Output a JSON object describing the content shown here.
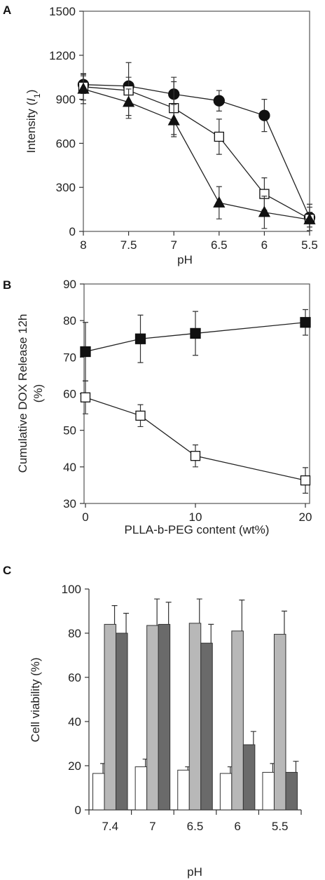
{
  "chart_data": [
    {
      "panel": "A",
      "type": "line",
      "xlabel": "pH",
      "ylabel_prefix": "Intensity (",
      "ylabel_italic": "I",
      "ylabel_sub": "1",
      "ylabel_suffix": ")",
      "x": [
        8,
        7.5,
        7,
        6.5,
        6,
        5.5
      ],
      "x_tick_labels": [
        "8",
        "7.5",
        "7",
        "6.5",
        "6",
        "5.5"
      ],
      "x_reversed": true,
      "ylim": [
        0,
        1500
      ],
      "y_ticks": [
        0,
        300,
        600,
        900,
        1200,
        1500
      ],
      "grid": false,
      "legend": "none",
      "series": [
        {
          "marker": "filled-circle",
          "values": [
            1000,
            990,
            935,
            890,
            790,
            95
          ],
          "errors": [
            60,
            60,
            115,
            70,
            110,
            90
          ]
        },
        {
          "marker": "open-square",
          "values": [
            985,
            960,
            840,
            645,
            255,
            85
          ],
          "errors": [
            90,
            190,
            180,
            120,
            110,
            80
          ]
        },
        {
          "marker": "filled-triangle",
          "values": [
            970,
            880,
            755,
            195,
            130,
            80
          ],
          "errors": [
            100,
            90,
            110,
            110,
            110,
            50
          ]
        }
      ]
    },
    {
      "panel": "B",
      "type": "line",
      "xlabel": "PLLA-b-PEG content (wt%)",
      "ylabel_line1": "Cumulative DOX Release 12h",
      "ylabel_line2": "(%)",
      "x": [
        0,
        5,
        10,
        20
      ],
      "xlim": [
        0,
        20
      ],
      "x_ticks": [
        0,
        10,
        20
      ],
      "ylim": [
        30,
        90
      ],
      "y_ticks": [
        30,
        40,
        50,
        60,
        70,
        80,
        90
      ],
      "grid": false,
      "legend": "none",
      "series": [
        {
          "marker": "filled-square",
          "values": [
            71.5,
            75,
            76.5,
            79.5
          ],
          "errors": [
            8,
            6.5,
            6,
            3.5
          ]
        },
        {
          "marker": "open-square",
          "values": [
            59,
            54,
            43,
            36.3
          ],
          "errors": [
            4.5,
            3,
            3,
            3.5
          ]
        }
      ]
    },
    {
      "panel": "C",
      "type": "bar",
      "xlabel": "pH",
      "ylabel": "Cell viability (%)",
      "categories": [
        "7.4",
        "7",
        "6.5",
        "6",
        "5.5"
      ],
      "ylim": [
        0,
        100
      ],
      "y_ticks": [
        0,
        20,
        40,
        60,
        80,
        100
      ],
      "grid": false,
      "legend": "none",
      "series": [
        {
          "color": "#ffffff",
          "values": [
            16.5,
            19.5,
            18,
            16.5,
            17
          ],
          "errors": [
            4.5,
            3.5,
            1.5,
            3,
            4
          ]
        },
        {
          "color": "#b8b8b8",
          "values": [
            84,
            83.5,
            84.5,
            81,
            79.5
          ],
          "errors": [
            8.5,
            12,
            11,
            14,
            10.5
          ]
        },
        {
          "color": "#6a6a6a",
          "values": [
            80,
            84,
            75.5,
            29.5,
            17
          ],
          "errors": [
            9,
            10,
            8.5,
            6,
            5
          ]
        }
      ]
    }
  ]
}
